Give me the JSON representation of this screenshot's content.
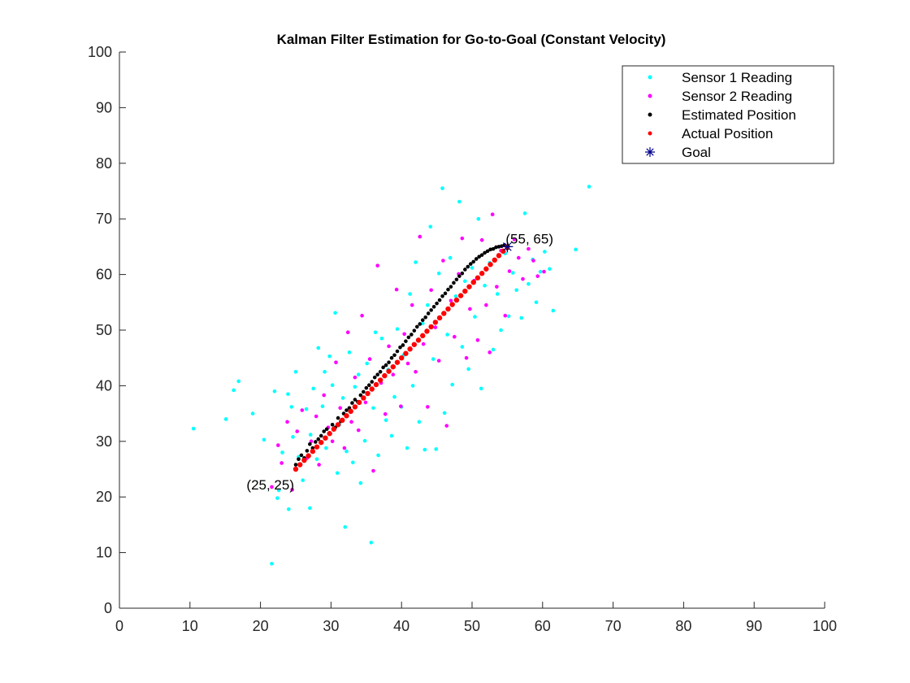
{
  "chart_data": {
    "type": "scatter",
    "title": "Kalman Filter Estimation for Go-to-Goal (Constant Velocity)",
    "xlabel": "",
    "ylabel": "",
    "xlim": [
      0,
      100
    ],
    "ylim": [
      0,
      100
    ],
    "xticks": [
      0,
      10,
      20,
      30,
      40,
      50,
      60,
      70,
      80,
      90,
      100
    ],
    "yticks": [
      0,
      10,
      20,
      30,
      40,
      50,
      60,
      70,
      80,
      90,
      100
    ],
    "grid": false,
    "legend_position": "top-right",
    "annotations": [
      {
        "text": "(25, 25)",
        "x": 25,
        "y": 25
      },
      {
        "text": "(55, 65)",
        "x": 55,
        "y": 65
      }
    ],
    "series": [
      {
        "name": "Sensor 1 Reading",
        "color": "#00ffff",
        "marker": "dot",
        "points": [
          [
            10.5,
            32.3
          ],
          [
            15.1,
            34.0
          ],
          [
            16.2,
            39.2
          ],
          [
            16.9,
            40.8
          ],
          [
            18.9,
            35.0
          ],
          [
            20.5,
            30.3
          ],
          [
            21.6,
            8.0
          ],
          [
            22.0,
            39.0
          ],
          [
            22.4,
            19.8
          ],
          [
            22.6,
            21.2
          ],
          [
            23.1,
            28.0
          ],
          [
            23.9,
            38.5
          ],
          [
            24.0,
            17.8
          ],
          [
            24.4,
            36.2
          ],
          [
            24.6,
            30.8
          ],
          [
            25.0,
            42.5
          ],
          [
            25.4,
            27.2
          ],
          [
            26.0,
            23.0
          ],
          [
            26.5,
            35.8
          ],
          [
            27.0,
            18.0
          ],
          [
            27.1,
            31.2
          ],
          [
            27.5,
            39.5
          ],
          [
            28.0,
            26.8
          ],
          [
            28.2,
            46.8
          ],
          [
            28.8,
            36.3
          ],
          [
            29.1,
            42.5
          ],
          [
            29.3,
            28.8
          ],
          [
            29.8,
            45.3
          ],
          [
            30.2,
            40.1
          ],
          [
            30.6,
            53.1
          ],
          [
            30.9,
            24.3
          ],
          [
            31.2,
            33.0
          ],
          [
            31.7,
            37.8
          ],
          [
            32.0,
            14.6
          ],
          [
            32.2,
            28.2
          ],
          [
            32.6,
            46.0
          ],
          [
            33.1,
            26.2
          ],
          [
            33.4,
            39.8
          ],
          [
            33.9,
            42.0
          ],
          [
            34.2,
            22.5
          ],
          [
            34.8,
            30.1
          ],
          [
            35.1,
            44.0
          ],
          [
            35.7,
            11.8
          ],
          [
            36.0,
            36.0
          ],
          [
            36.3,
            49.6
          ],
          [
            36.7,
            27.5
          ],
          [
            37.2,
            48.5
          ],
          [
            37.8,
            33.8
          ],
          [
            38.1,
            42.9
          ],
          [
            38.6,
            31.0
          ],
          [
            39.0,
            38.0
          ],
          [
            39.4,
            50.2
          ],
          [
            40.0,
            36.2
          ],
          [
            40.3,
            45.5
          ],
          [
            40.8,
            28.8
          ],
          [
            41.2,
            56.5
          ],
          [
            41.6,
            40.0
          ],
          [
            42.0,
            62.2
          ],
          [
            42.5,
            33.5
          ],
          [
            43.0,
            51.2
          ],
          [
            43.3,
            28.5
          ],
          [
            43.7,
            54.5
          ],
          [
            44.1,
            68.6
          ],
          [
            44.5,
            44.8
          ],
          [
            44.9,
            28.6
          ],
          [
            45.3,
            60.2
          ],
          [
            45.8,
            75.5
          ],
          [
            46.1,
            35.1
          ],
          [
            46.5,
            49.2
          ],
          [
            46.9,
            63.0
          ],
          [
            47.2,
            40.2
          ],
          [
            47.7,
            56.1
          ],
          [
            48.2,
            73.1
          ],
          [
            48.6,
            47.0
          ],
          [
            49.0,
            58.8
          ],
          [
            49.5,
            43.0
          ],
          [
            50.0,
            61.2
          ],
          [
            50.4,
            52.4
          ],
          [
            50.9,
            70.0
          ],
          [
            51.3,
            39.5
          ],
          [
            51.8,
            58.0
          ],
          [
            52.5,
            62.1
          ],
          [
            53.0,
            46.5
          ],
          [
            53.6,
            56.5
          ],
          [
            54.1,
            50.0
          ],
          [
            54.7,
            63.8
          ],
          [
            55.2,
            52.5
          ],
          [
            55.8,
            60.3
          ],
          [
            56.3,
            57.2
          ],
          [
            57.0,
            52.2
          ],
          [
            57.5,
            71.0
          ],
          [
            58.0,
            58.3
          ],
          [
            58.6,
            62.7
          ],
          [
            59.1,
            55.0
          ],
          [
            59.7,
            60.5
          ],
          [
            60.3,
            64.1
          ],
          [
            61.0,
            61.0
          ],
          [
            61.5,
            53.5
          ],
          [
            64.7,
            64.5
          ],
          [
            66.6,
            75.8
          ]
        ]
      },
      {
        "name": "Sensor 2 Reading",
        "color": "#ff00ff",
        "marker": "dot",
        "points": [
          [
            21.6,
            21.8
          ],
          [
            22.5,
            29.3
          ],
          [
            23.0,
            26.1
          ],
          [
            23.8,
            33.5
          ],
          [
            24.5,
            21.3
          ],
          [
            25.2,
            31.8
          ],
          [
            25.9,
            35.6
          ],
          [
            26.6,
            27.0
          ],
          [
            27.2,
            30.0
          ],
          [
            27.9,
            34.5
          ],
          [
            28.3,
            25.8
          ],
          [
            29.0,
            38.3
          ],
          [
            29.6,
            32.5
          ],
          [
            30.2,
            30.0
          ],
          [
            30.7,
            44.2
          ],
          [
            31.3,
            36.0
          ],
          [
            31.9,
            28.8
          ],
          [
            32.4,
            49.6
          ],
          [
            32.9,
            33.5
          ],
          [
            33.4,
            41.5
          ],
          [
            33.9,
            32.0
          ],
          [
            34.4,
            52.6
          ],
          [
            34.9,
            37.0
          ],
          [
            35.5,
            44.8
          ],
          [
            36.0,
            24.7
          ],
          [
            36.6,
            61.6
          ],
          [
            37.1,
            40.5
          ],
          [
            37.7,
            34.9
          ],
          [
            38.2,
            47.1
          ],
          [
            38.8,
            42.0
          ],
          [
            39.3,
            57.3
          ],
          [
            39.9,
            36.3
          ],
          [
            40.4,
            49.3
          ],
          [
            40.9,
            44.0
          ],
          [
            41.5,
            54.5
          ],
          [
            42.0,
            42.5
          ],
          [
            42.6,
            66.8
          ],
          [
            43.1,
            47.5
          ],
          [
            43.7,
            36.2
          ],
          [
            44.2,
            57.2
          ],
          [
            44.8,
            50.5
          ],
          [
            45.3,
            44.5
          ],
          [
            45.9,
            62.5
          ],
          [
            46.4,
            32.8
          ],
          [
            47.0,
            55.3
          ],
          [
            47.5,
            48.8
          ],
          [
            48.1,
            60.1
          ],
          [
            48.6,
            66.5
          ],
          [
            49.2,
            45.0
          ],
          [
            49.7,
            53.8
          ],
          [
            50.3,
            58.9
          ],
          [
            50.8,
            48.2
          ],
          [
            51.4,
            66.2
          ],
          [
            52.0,
            54.5
          ],
          [
            52.5,
            46.0
          ],
          [
            52.9,
            70.8
          ],
          [
            53.5,
            57.8
          ],
          [
            54.1,
            64.3
          ],
          [
            54.7,
            52.6
          ],
          [
            55.3,
            60.6
          ],
          [
            56.0,
            66.3
          ],
          [
            56.6,
            63.0
          ],
          [
            57.2,
            59.2
          ],
          [
            58.0,
            64.6
          ],
          [
            58.7,
            62.5
          ],
          [
            59.3,
            59.7
          ],
          [
            60.2,
            60.5
          ]
        ]
      },
      {
        "name": "Estimated Position",
        "color": "#000000",
        "marker": "dot",
        "points": [
          [
            25.0,
            25.8
          ],
          [
            25.4,
            26.8
          ],
          [
            25.8,
            27.5
          ],
          [
            26.2,
            27.0
          ],
          [
            26.6,
            28.3
          ],
          [
            27.0,
            29.5
          ],
          [
            27.4,
            28.8
          ],
          [
            27.8,
            29.9
          ],
          [
            28.2,
            30.4
          ],
          [
            28.6,
            31.0
          ],
          [
            29.0,
            31.8
          ],
          [
            29.4,
            32.2
          ],
          [
            29.8,
            31.5
          ],
          [
            30.2,
            33.0
          ],
          [
            30.6,
            32.5
          ],
          [
            31.0,
            34.2
          ],
          [
            31.4,
            33.6
          ],
          [
            31.8,
            35.0
          ],
          [
            32.2,
            35.6
          ],
          [
            32.6,
            36.0
          ],
          [
            33.0,
            36.9
          ],
          [
            33.4,
            37.5
          ],
          [
            33.8,
            37.1
          ],
          [
            34.2,
            38.3
          ],
          [
            34.6,
            38.9
          ],
          [
            35.0,
            39.6
          ],
          [
            35.4,
            40.1
          ],
          [
            35.8,
            40.7
          ],
          [
            36.2,
            41.5
          ],
          [
            36.6,
            42.0
          ],
          [
            37.0,
            42.5
          ],
          [
            37.4,
            43.3
          ],
          [
            37.8,
            43.7
          ],
          [
            38.2,
            44.2
          ],
          [
            38.6,
            45.0
          ],
          [
            39.0,
            45.5
          ],
          [
            39.4,
            46.2
          ],
          [
            39.8,
            46.9
          ],
          [
            40.2,
            47.3
          ],
          [
            40.6,
            48.0
          ],
          [
            41.0,
            48.7
          ],
          [
            41.4,
            49.2
          ],
          [
            41.8,
            49.9
          ],
          [
            42.2,
            50.6
          ],
          [
            42.6,
            51.1
          ],
          [
            43.0,
            51.8
          ],
          [
            43.4,
            52.3
          ],
          [
            43.8,
            53.0
          ],
          [
            44.2,
            53.6
          ],
          [
            44.6,
            54.2
          ],
          [
            45.0,
            54.8
          ],
          [
            45.4,
            55.4
          ],
          [
            45.8,
            56.1
          ],
          [
            46.2,
            56.6
          ],
          [
            46.6,
            57.3
          ],
          [
            47.0,
            57.8
          ],
          [
            47.4,
            58.5
          ],
          [
            47.8,
            59.1
          ],
          [
            48.2,
            59.7
          ],
          [
            48.6,
            60.2
          ],
          [
            49.0,
            60.9
          ],
          [
            49.4,
            61.4
          ],
          [
            49.8,
            61.9
          ],
          [
            50.2,
            62.3
          ],
          [
            50.6,
            62.8
          ],
          [
            51.0,
            63.2
          ],
          [
            51.4,
            63.5
          ],
          [
            51.8,
            63.9
          ],
          [
            52.2,
            64.2
          ],
          [
            52.6,
            64.5
          ],
          [
            53.0,
            64.6
          ],
          [
            53.4,
            64.9
          ],
          [
            53.8,
            65.0
          ],
          [
            54.2,
            65.1
          ],
          [
            54.6,
            65.3
          ],
          [
            55.0,
            64.7
          ]
        ]
      },
      {
        "name": "Actual Position",
        "color": "#ff0000",
        "marker": "dot",
        "points": [
          [
            25.0,
            25.0
          ],
          [
            25.6,
            25.8
          ],
          [
            26.2,
            26.6
          ],
          [
            26.8,
            27.4
          ],
          [
            27.4,
            28.2
          ],
          [
            28.0,
            29.0
          ],
          [
            28.6,
            29.8
          ],
          [
            29.2,
            30.6
          ],
          [
            29.8,
            31.4
          ],
          [
            30.4,
            32.2
          ],
          [
            31.0,
            33.0
          ],
          [
            31.6,
            33.8
          ],
          [
            32.2,
            34.6
          ],
          [
            32.8,
            35.4
          ],
          [
            33.4,
            36.2
          ],
          [
            34.0,
            37.0
          ],
          [
            34.6,
            37.8
          ],
          [
            35.2,
            38.6
          ],
          [
            35.8,
            39.4
          ],
          [
            36.4,
            40.2
          ],
          [
            37.0,
            41.0
          ],
          [
            37.6,
            41.8
          ],
          [
            38.2,
            42.6
          ],
          [
            38.8,
            43.4
          ],
          [
            39.4,
            44.2
          ],
          [
            40.0,
            45.0
          ],
          [
            40.6,
            45.8
          ],
          [
            41.2,
            46.6
          ],
          [
            41.8,
            47.4
          ],
          [
            42.4,
            48.2
          ],
          [
            43.0,
            49.0
          ],
          [
            43.6,
            49.8
          ],
          [
            44.2,
            50.6
          ],
          [
            44.8,
            51.4
          ],
          [
            45.4,
            52.2
          ],
          [
            46.0,
            53.0
          ],
          [
            46.6,
            53.8
          ],
          [
            47.2,
            54.6
          ],
          [
            47.8,
            55.4
          ],
          [
            48.4,
            56.2
          ],
          [
            49.0,
            57.0
          ],
          [
            49.6,
            57.8
          ],
          [
            50.2,
            58.6
          ],
          [
            50.8,
            59.4
          ],
          [
            51.4,
            60.2
          ],
          [
            52.0,
            61.0
          ],
          [
            52.6,
            61.8
          ],
          [
            53.2,
            62.6
          ],
          [
            53.8,
            63.4
          ],
          [
            54.4,
            64.2
          ],
          [
            55.0,
            65.0
          ]
        ]
      },
      {
        "name": "Goal",
        "color": "#00008b",
        "marker": "asterisk",
        "points": [
          [
            55,
            65
          ]
        ]
      }
    ]
  }
}
